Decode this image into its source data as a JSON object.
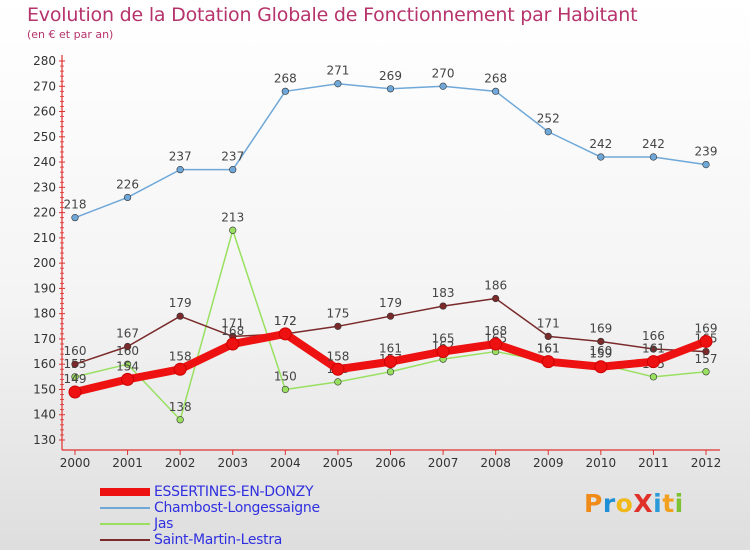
{
  "header": {
    "title": "Evolution de la Dotation Globale de Fonctionnement par Habitant",
    "subtitle": "(en € et par an)"
  },
  "logo": {
    "text": "ProXiti",
    "letters": [
      {
        "char": "P",
        "color": "#f08a18"
      },
      {
        "char": "r",
        "color": "#1e8fd6"
      },
      {
        "char": "o",
        "color": "#f0b818"
      },
      {
        "char": "X",
        "color": "#e0302a"
      },
      {
        "char": "i",
        "color": "#2b9ad8"
      },
      {
        "char": "t",
        "color": "#f2a020"
      },
      {
        "char": "i",
        "color": "#7cc232"
      }
    ]
  },
  "chart_data": {
    "type": "line",
    "x": [
      "2000",
      "2001",
      "2002",
      "2003",
      "2004",
      "2005",
      "2006",
      "2007",
      "2008",
      "2009",
      "2010",
      "2011",
      "2012"
    ],
    "ylim": [
      130,
      280
    ],
    "yticks": [
      130,
      140,
      150,
      160,
      170,
      180,
      190,
      200,
      210,
      220,
      230,
      240,
      250,
      260,
      270,
      280
    ],
    "grid": false,
    "legend_position": "bottom-left",
    "series": [
      {
        "name": "ESSERTINES-EN-DONZY",
        "color": "#ee1111",
        "width": 8,
        "values": [
          149,
          154,
          158,
          168,
          172,
          158,
          161,
          165,
          168,
          161,
          159,
          161,
          169
        ]
      },
      {
        "name": "Chambost-Longessaigne",
        "color": "#6fa8d8",
        "width": 1.5,
        "values": [
          218,
          226,
          237,
          237,
          268,
          271,
          269,
          270,
          268,
          252,
          242,
          242,
          239
        ]
      },
      {
        "name": "Jas",
        "color": "#99e060",
        "width": 1.5,
        "values": [
          155,
          160,
          138,
          213,
          150,
          153,
          157,
          162,
          165,
          161,
          160,
          155,
          157
        ]
      },
      {
        "name": "Saint-Martin-Lestra",
        "color": "#7a2a2a",
        "width": 1.5,
        "values": [
          160,
          167,
          179,
          171,
          172,
          175,
          179,
          183,
          186,
          171,
          169,
          166,
          165
        ]
      }
    ]
  }
}
